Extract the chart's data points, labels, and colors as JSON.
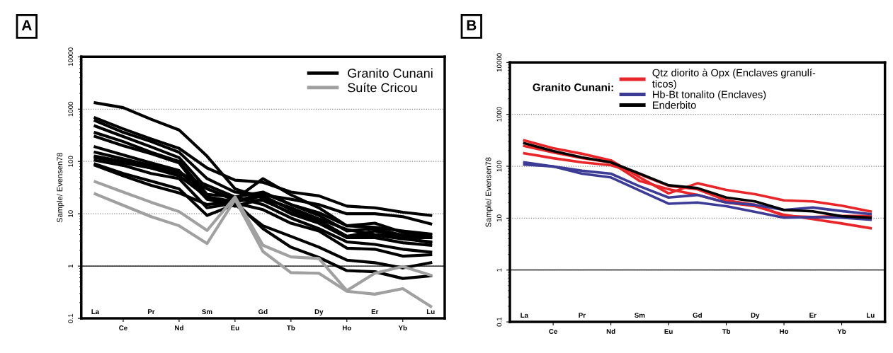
{
  "chart_data": [
    {
      "type": "line",
      "title": "A",
      "ylabel": "Sample/ Evensen78",
      "categories": [
        "La",
        "Ce",
        "Pr",
        "Nd",
        "Sm",
        "Eu",
        "Gd",
        "Tb",
        "Dy",
        "Ho",
        "Er",
        "Yb",
        "Lu"
      ],
      "log": "y",
      "ylim": [
        0.1,
        10000
      ],
      "yticks": [
        0.1,
        1,
        10,
        100,
        1000,
        10000
      ],
      "grid": "y",
      "legend": "top right",
      "ref_lines": [
        {
          "axis": "y",
          "value": 1,
          "color": "#000000",
          "line_style": "solid"
        }
      ],
      "series": [
        {
          "name": "Granito Cunani",
          "color": "#000000",
          "values": [
            1320,
            1070,
            640,
            400,
            126,
            30,
            20,
            13,
            8,
            5,
            4,
            3.5,
            3.5
          ]
        },
        {
          "color": "#000000",
          "values": [
            680,
            420,
            270,
            178,
            75,
            44,
            40,
            26,
            22,
            14,
            13,
            10.7,
            9.3
          ]
        },
        {
          "color": "#000000",
          "values": [
            600,
            360,
            240,
            150,
            47,
            26,
            23,
            19,
            15,
            10,
            10,
            8.8,
            6.4
          ]
        },
        {
          "color": "#000000",
          "values": [
            475,
            300,
            190,
            118,
            30,
            19,
            47,
            23,
            13,
            5.9,
            6.6,
            4.4,
            3.9
          ]
        },
        {
          "color": "#000000",
          "values": [
            355,
            240,
            150,
            100,
            23.5,
            21,
            26,
            15,
            9.3,
            4.7,
            5.2,
            3.9,
            3.5
          ]
        },
        {
          "color": "#000000",
          "values": [
            300,
            200,
            141,
            94,
            19,
            17,
            22,
            12,
            7.4,
            3.7,
            3.9,
            3.3,
            2.9
          ]
        },
        {
          "color": "#000000",
          "values": [
            190,
            133,
            94,
            67,
            19,
            14,
            19,
            10,
            6.6,
            3.5,
            3.5,
            2.8,
            2.5
          ]
        },
        {
          "color": "#000000",
          "values": [
            126,
            100,
            75,
            59,
            35,
            21,
            15,
            8.3,
            5.2,
            2.9,
            2.6,
            2.1,
            1.85
          ]
        },
        {
          "color": "#000000",
          "values": [
            105,
            84,
            59,
            47,
            13,
            16,
            12,
            6.6,
            4.7,
            2.2,
            2.1,
            1.55,
            1.65
          ]
        },
        {
          "color": "#000000",
          "values": [
            89,
            59,
            42,
            30,
            9.3,
            15,
            5.9,
            3.7,
            2.3,
            1.3,
            1.16,
            0.92,
            1.16
          ]
        },
        {
          "color": "#000000",
          "values": [
            84,
            53,
            35,
            25,
            15,
            17,
            5.2,
            2.3,
            1.46,
            0.82,
            0.78,
            0.58,
            0.65
          ]
        },
        {
          "color": "#000000",
          "values": [
            118,
            94,
            75,
            53,
            21,
            17,
            25,
            15,
            10.5,
            5.9,
            5.5,
            4.7,
            4.1
          ]
        },
        {
          "color": "#000000",
          "values": [
            150,
            112,
            84,
            63,
            30,
            18,
            18,
            10.5,
            7.4,
            3.7,
            4.7,
            3.5,
            2.8
          ]
        },
        {
          "name": "Suíte Cricou",
          "color": "#a0a0a0",
          "values": [
            41,
            26,
            16.6,
            11,
            4.8,
            21,
            2.5,
            1.5,
            1.4,
            0.34,
            0.73,
            0.98,
            0.67
          ]
        },
        {
          "color": "#a0a0a0",
          "values": [
            24,
            14.5,
            8.8,
            5.9,
            2.7,
            18.7,
            1.9,
            0.75,
            0.73,
            0.33,
            0.29,
            0.37,
            0.17
          ]
        }
      ]
    },
    {
      "type": "line",
      "title": "B",
      "ylabel": "Sample/ Evensen78",
      "legend_title": "Granito Cunani:",
      "categories": [
        "La",
        "Ce",
        "Pr",
        "Nd",
        "Sm",
        "Eu",
        "Gd",
        "Tb",
        "Dy",
        "Ho",
        "Er",
        "Yb",
        "Lu"
      ],
      "log": "y",
      "ylim": [
        0.1,
        10000
      ],
      "yticks": [
        0.1,
        1,
        10,
        100,
        1000,
        10000
      ],
      "grid": "y",
      "legend": "top right",
      "ref_lines": [
        {
          "axis": "y",
          "value": 1,
          "color": "#000000",
          "line_style": "solid"
        }
      ],
      "series": [
        {
          "name": "Qtz diorito à Opx (Enclaves granulí-\nticos)",
          "color": "#e8262a",
          "values": [
            314,
            223,
            174,
            130,
            61,
            30,
            47,
            35,
            29,
            22,
            21,
            17.4,
            13.5
          ]
        },
        {
          "color": "#e8262a",
          "values": [
            245,
            185,
            144,
            119,
            52,
            36,
            28,
            20,
            17,
            11.6,
            9.6,
            7.9,
            6.4
          ]
        },
        {
          "color": "#e8262a",
          "values": [
            178,
            143,
            119,
            105,
            70,
            42,
            36,
            22,
            18,
            11,
            10.5,
            11,
            11
          ]
        },
        {
          "name": "Hb-Bt tonalito (Enclaves)",
          "color": "#3c3c96",
          "values": [
            119,
            99,
            82,
            72,
            41,
            25,
            28,
            20,
            18,
            14.4,
            16,
            13.7,
            12
          ]
        },
        {
          "color": "#3c3c96",
          "values": [
            108,
            99,
            72,
            61,
            34,
            19,
            20,
            17,
            13.2,
            10.2,
            10.5,
            10.2,
            9.3
          ]
        },
        {
          "name": "Enderbito",
          "color": "#000000",
          "values": [
            278,
            197,
            148,
            119,
            72,
            43,
            38,
            25,
            21,
            14.4,
            13.5,
            10.9,
            10.2
          ]
        }
      ]
    }
  ]
}
